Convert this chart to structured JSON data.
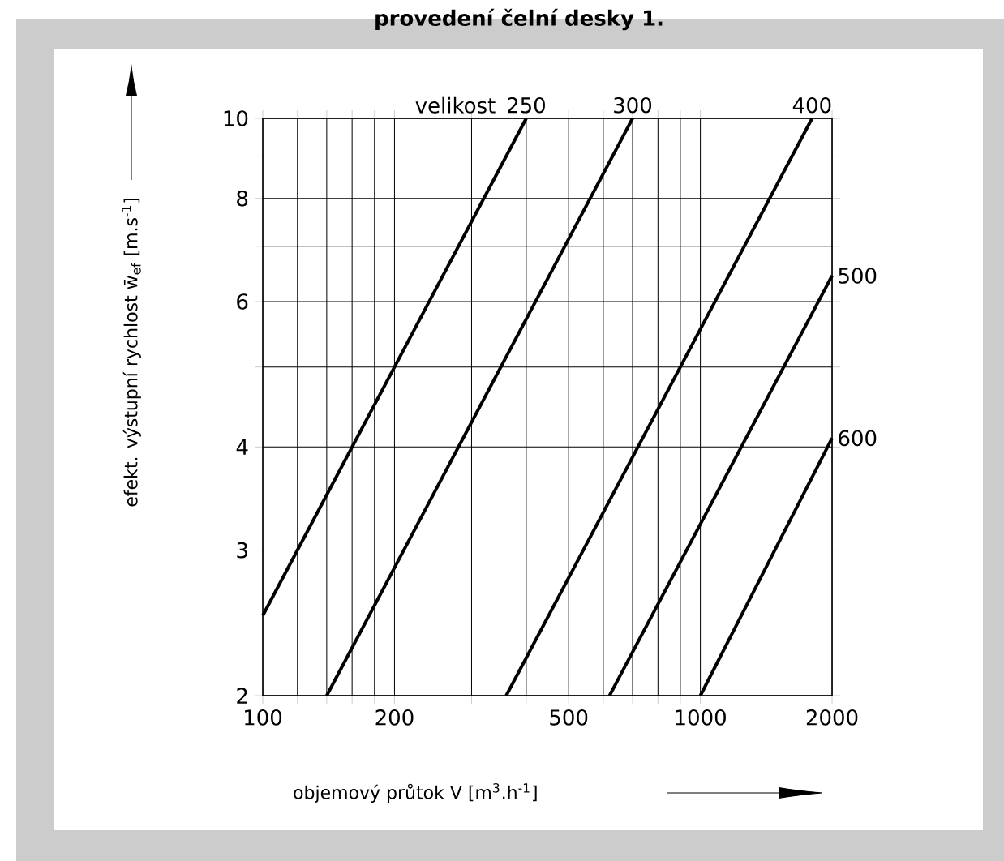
{
  "chart_data": {
    "type": "line",
    "title": "provedení čelní desky 1.",
    "xlabel": "objemový průtok V [m$^{3}$.h$^{-1}$]",
    "ylabel": "efekt. výstupní rychlost w̄$_{ef}$ [m.s$^{-1}$]",
    "annotations": [
      "velikost"
    ],
    "log": "xy",
    "grid": true,
    "marker": "none",
    "line_style": "solid",
    "xlim": [
      100,
      2000
    ],
    "ylim": [
      2,
      10
    ],
    "xticks": [
      100,
      {
        "value": 120,
        "label": null
      },
      {
        "value": 140,
        "label": null
      },
      {
        "value": 160,
        "label": null
      },
      {
        "value": 180,
        "label": null
      },
      200,
      {
        "value": 300,
        "label": null
      },
      {
        "value": 400,
        "label": null
      },
      500,
      {
        "value": 600,
        "label": null
      },
      {
        "value": 700,
        "label": null
      },
      {
        "value": 800,
        "label": null
      },
      {
        "value": 900,
        "label": null
      },
      1000,
      2000
    ],
    "yticks": [
      2,
      3,
      4,
      {
        "value": 5,
        "label": null
      },
      6,
      {
        "value": 7,
        "label": null
      },
      8,
      {
        "value": 9,
        "label": null
      },
      10
    ],
    "series": [
      {
        "name": "250",
        "color": "#000000",
        "x": [
          100,
          400
        ],
        "values": [
          2.5,
          10
        ]
      },
      {
        "name": "300",
        "color": "#000000",
        "x": [
          140,
          700
        ],
        "values": [
          2,
          10
        ]
      },
      {
        "name": "400",
        "color": "#000000",
        "x": [
          360,
          1800
        ],
        "values": [
          2,
          10
        ]
      },
      {
        "name": "500",
        "color": "#000000",
        "x": [
          620,
          2000
        ],
        "values": [
          2,
          6.45
        ]
      },
      {
        "name": "600",
        "color": "#000000",
        "x": [
          1000,
          2000
        ],
        "values": [
          2,
          4.1
        ]
      }
    ]
  }
}
